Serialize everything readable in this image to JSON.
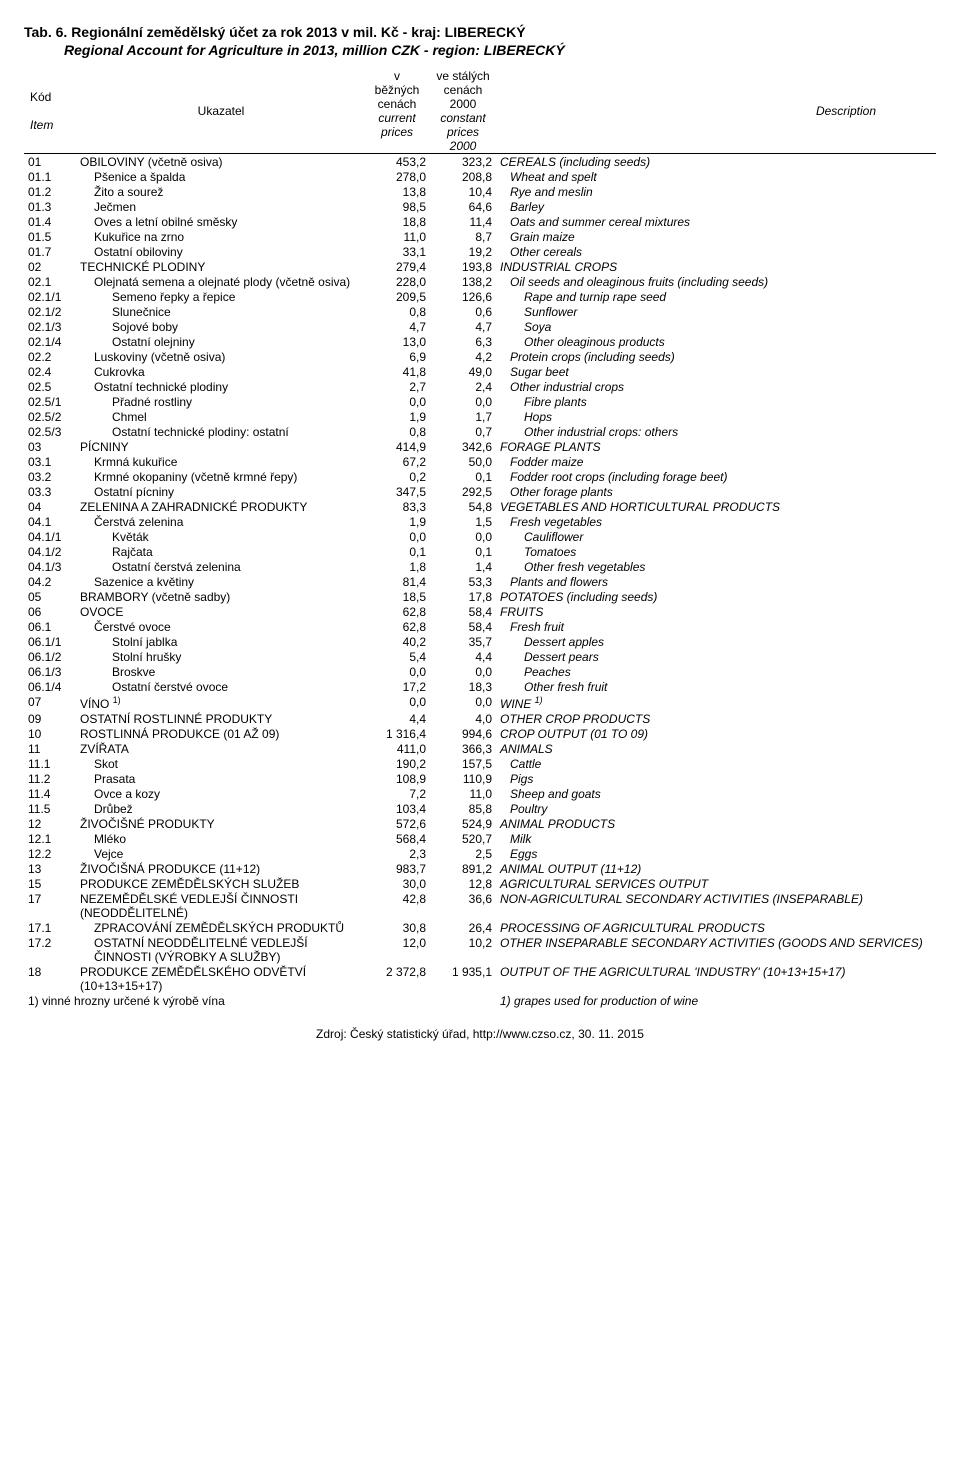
{
  "title_cz": "Tab. 6. Regionální zemědělský účet za rok 2013 v mil. Kč - kraj: LIBERECKÝ",
  "title_en": "Regional Account for Agriculture  in 2013, million CZK - region: LIBERECKÝ",
  "header": {
    "kod": "Kód",
    "item": "Item",
    "ukazatel": "Ukazatel",
    "col1_cz_l1": "v",
    "col1_cz_l2": "běžných",
    "col1_cz_l3": "cenách",
    "col1_en_l1": "current",
    "col1_en_l2": "prices",
    "col2_cz_l1": "ve stálých",
    "col2_cz_l2": "cenách",
    "col2_cz_l3": "2000",
    "col2_en_l1": "constant",
    "col2_en_l2": "prices",
    "col2_en_l3": "2000",
    "description": "Description"
  },
  "rows": [
    {
      "code": "01",
      "ukz": "OBILOVINY (včetně osiva)",
      "v1": "453,2",
      "v2": "323,2",
      "desc": "CEREALS (including seeds)",
      "ui": 0,
      "di": 0
    },
    {
      "code": "01.1",
      "ukz": "Pšenice a špalda",
      "v1": "278,0",
      "v2": "208,8",
      "desc": "Wheat and spelt",
      "ui": 1,
      "di": 1
    },
    {
      "code": "01.2",
      "ukz": "Žito a sourež",
      "v1": "13,8",
      "v2": "10,4",
      "desc": "Rye and meslin",
      "ui": 1,
      "di": 1
    },
    {
      "code": "01.3",
      "ukz": "Ječmen",
      "v1": "98,5",
      "v2": "64,6",
      "desc": "Barley",
      "ui": 1,
      "di": 1
    },
    {
      "code": "01.4",
      "ukz": "Oves a letní obilné směsky",
      "v1": "18,8",
      "v2": "11,4",
      "desc": "Oats and summer cereal mixtures",
      "ui": 1,
      "di": 1
    },
    {
      "code": "01.5",
      "ukz": "Kukuřice na zrno",
      "v1": "11,0",
      "v2": "8,7",
      "desc": "Grain maize",
      "ui": 1,
      "di": 1
    },
    {
      "code": "01.7",
      "ukz": "Ostatní obiloviny",
      "v1": "33,1",
      "v2": "19,2",
      "desc": "Other cereals",
      "ui": 1,
      "di": 1
    },
    {
      "code": "02",
      "ukz": "TECHNICKÉ PLODINY",
      "v1": "279,4",
      "v2": "193,8",
      "desc": "INDUSTRIAL CROPS",
      "ui": 0,
      "di": 0
    },
    {
      "code": "02.1",
      "ukz": "Olejnatá semena a olejnaté plody (včetně osiva)",
      "v1": "228,0",
      "v2": "138,2",
      "desc": "Oil seeds and oleaginous fruits (including seeds)",
      "ui": 1,
      "di": 1
    },
    {
      "code": "02.1/1",
      "ukz": "Semeno řepky a řepice",
      "v1": "209,5",
      "v2": "126,6",
      "desc": "Rape and turnip rape seed",
      "ui": 2,
      "di": 2
    },
    {
      "code": "02.1/2",
      "ukz": "Slunečnice",
      "v1": "0,8",
      "v2": "0,6",
      "desc": "Sunflower",
      "ui": 2,
      "di": 2
    },
    {
      "code": "02.1/3",
      "ukz": "Sojové boby",
      "v1": "4,7",
      "v2": "4,7",
      "desc": "Soya",
      "ui": 2,
      "di": 2
    },
    {
      "code": "02.1/4",
      "ukz": "Ostatní olejniny",
      "v1": "13,0",
      "v2": "6,3",
      "desc": "Other oleaginous products",
      "ui": 2,
      "di": 2
    },
    {
      "code": "02.2",
      "ukz": "Luskoviny (včetně osiva)",
      "v1": "6,9",
      "v2": "4,2",
      "desc": "Protein crops (including seeds)",
      "ui": 1,
      "di": 1
    },
    {
      "code": "02.4",
      "ukz": "Cukrovka",
      "v1": "41,8",
      "v2": "49,0",
      "desc": "Sugar beet",
      "ui": 1,
      "di": 1
    },
    {
      "code": "02.5",
      "ukz": "Ostatní technické plodiny",
      "v1": "2,7",
      "v2": "2,4",
      "desc": "Other industrial crops",
      "ui": 1,
      "di": 1
    },
    {
      "code": "02.5/1",
      "ukz": "Přadné rostliny",
      "v1": "0,0",
      "v2": "0,0",
      "desc": "Fibre plants",
      "ui": 2,
      "di": 2
    },
    {
      "code": "02.5/2",
      "ukz": "Chmel",
      "v1": "1,9",
      "v2": "1,7",
      "desc": "Hops",
      "ui": 2,
      "di": 2
    },
    {
      "code": "02.5/3",
      "ukz": "Ostatní technické plodiny: ostatní",
      "v1": "0,8",
      "v2": "0,7",
      "desc": "Other industrial crops: others",
      "ui": 2,
      "di": 2
    },
    {
      "code": "03",
      "ukz": "PÍCNINY",
      "v1": "414,9",
      "v2": "342,6",
      "desc": "FORAGE PLANTS",
      "ui": 0,
      "di": 0
    },
    {
      "code": "03.1",
      "ukz": "Krmná kukuřice",
      "v1": "67,2",
      "v2": "50,0",
      "desc": "Fodder maize",
      "ui": 1,
      "di": 1
    },
    {
      "code": "03.2",
      "ukz": "Krmné okopaniny (včetně krmné řepy)",
      "v1": "0,2",
      "v2": "0,1",
      "desc": "Fodder root crops (including forage beet)",
      "ui": 1,
      "di": 1
    },
    {
      "code": "03.3",
      "ukz": "Ostatní pícniny",
      "v1": "347,5",
      "v2": "292,5",
      "desc": "Other forage plants",
      "ui": 1,
      "di": 1
    },
    {
      "code": "04",
      "ukz": "ZELENINA A ZAHRADNICKÉ PRODUKTY",
      "v1": "83,3",
      "v2": "54,8",
      "desc": "VEGETABLES AND HORTICULTURAL PRODUCTS",
      "ui": 0,
      "di": 0
    },
    {
      "code": "04.1",
      "ukz": "Čerstvá zelenina",
      "v1": "1,9",
      "v2": "1,5",
      "desc": "Fresh vegetables",
      "ui": 1,
      "di": 1
    },
    {
      "code": "04.1/1",
      "ukz": "Květák",
      "v1": "0,0",
      "v2": "0,0",
      "desc": "Cauliflower",
      "ui": 2,
      "di": 2
    },
    {
      "code": "04.1/2",
      "ukz": "Rajčata",
      "v1": "0,1",
      "v2": "0,1",
      "desc": "Tomatoes",
      "ui": 2,
      "di": 2
    },
    {
      "code": "04.1/3",
      "ukz": "Ostatní čerstvá zelenina",
      "v1": "1,8",
      "v2": "1,4",
      "desc": "Other fresh vegetables",
      "ui": 2,
      "di": 2
    },
    {
      "code": "04.2",
      "ukz": "Sazenice a květiny",
      "v1": "81,4",
      "v2": "53,3",
      "desc": "Plants and flowers",
      "ui": 1,
      "di": 1
    },
    {
      "code": "05",
      "ukz": "BRAMBORY (včetně sadby)",
      "v1": "18,5",
      "v2": "17,8",
      "desc": "POTATOES (including seeds)",
      "ui": 0,
      "di": 0
    },
    {
      "code": "06",
      "ukz": "OVOCE",
      "v1": "62,8",
      "v2": "58,4",
      "desc": "FRUITS",
      "ui": 0,
      "di": 0
    },
    {
      "code": "06.1",
      "ukz": "Čerstvé ovoce",
      "v1": "62,8",
      "v2": "58,4",
      "desc": "Fresh fruit",
      "ui": 1,
      "di": 1
    },
    {
      "code": "06.1/1",
      "ukz": "Stolní jablka",
      "v1": "40,2",
      "v2": "35,7",
      "desc": "Dessert apples",
      "ui": 2,
      "di": 2
    },
    {
      "code": "06.1/2",
      "ukz": "Stolní hrušky",
      "v1": "5,4",
      "v2": "4,4",
      "desc": "Dessert pears",
      "ui": 2,
      "di": 2
    },
    {
      "code": "06.1/3",
      "ukz": "Broskve",
      "v1": "0,0",
      "v2": "0,0",
      "desc": "Peaches",
      "ui": 2,
      "di": 2
    },
    {
      "code": "06.1/4",
      "ukz": "Ostatní čerstvé ovoce",
      "v1": "17,2",
      "v2": "18,3",
      "desc": "Other fresh fruit",
      "ui": 2,
      "di": 2
    },
    {
      "code": "07",
      "ukz": "VÍNO",
      "v1": "0,0",
      "v2": "0,0",
      "desc": "WINE",
      "ui": 0,
      "di": 0,
      "sup": "1)"
    },
    {
      "code": "09",
      "ukz": "OSTATNÍ ROSTLINNÉ PRODUKTY",
      "v1": "4,4",
      "v2": "4,0",
      "desc": "OTHER CROP PRODUCTS",
      "ui": 0,
      "di": 0
    },
    {
      "code": "10",
      "ukz": "ROSTLINNÁ PRODUKCE (01 AŽ 09)",
      "v1": "1 316,4",
      "v2": "994,6",
      "desc": "CROP OUTPUT (01 TO 09)",
      "ui": 0,
      "di": 0
    },
    {
      "code": "11",
      "ukz": "ZVÍŘATA",
      "v1": "411,0",
      "v2": "366,3",
      "desc": "ANIMALS",
      "ui": 0,
      "di": 0
    },
    {
      "code": "11.1",
      "ukz": "Skot",
      "v1": "190,2",
      "v2": "157,5",
      "desc": "Cattle",
      "ui": 1,
      "di": 1
    },
    {
      "code": "11.2",
      "ukz": "Prasata",
      "v1": "108,9",
      "v2": "110,9",
      "desc": "Pigs",
      "ui": 1,
      "di": 1
    },
    {
      "code": "11.4",
      "ukz": "Ovce a kozy",
      "v1": "7,2",
      "v2": "11,0",
      "desc": "Sheep and goats",
      "ui": 1,
      "di": 1
    },
    {
      "code": "11.5",
      "ukz": "Drůbež",
      "v1": "103,4",
      "v2": "85,8",
      "desc": "Poultry",
      "ui": 1,
      "di": 1
    },
    {
      "code": "12",
      "ukz": "ŽIVOČIŠNÉ PRODUKTY",
      "v1": "572,6",
      "v2": "524,9",
      "desc": "ANIMAL PRODUCTS",
      "ui": 0,
      "di": 0
    },
    {
      "code": "12.1",
      "ukz": "Mléko",
      "v1": "568,4",
      "v2": "520,7",
      "desc": "Milk",
      "ui": 1,
      "di": 1
    },
    {
      "code": "12.2",
      "ukz": "Vejce",
      "v1": "2,3",
      "v2": "2,5",
      "desc": "Eggs",
      "ui": 1,
      "di": 1
    },
    {
      "code": "13",
      "ukz": "ŽIVOČIŠNÁ PRODUKCE (11+12)",
      "v1": "983,7",
      "v2": "891,2",
      "desc": "ANIMAL OUTPUT (11+12)",
      "ui": 0,
      "di": 0
    },
    {
      "code": "15",
      "ukz": "PRODUKCE ZEMĚDĚLSKÝCH SLUŽEB",
      "v1": "30,0",
      "v2": "12,8",
      "desc": "AGRICULTURAL SERVICES OUTPUT",
      "ui": 0,
      "di": 0
    },
    {
      "code": "17",
      "ukz": "NEZEMĚDĚLSKÉ VEDLEJŠÍ ČINNOSTI (NEODDĚLITELNÉ)",
      "v1": "42,8",
      "v2": "36,6",
      "desc": "NON-AGRICULTURAL SECONDARY ACTIVITIES (INSEPARABLE)",
      "ui": 0,
      "di": 0
    },
    {
      "code": "17.1",
      "ukz": "ZPRACOVÁNÍ ZEMĚDĚLSKÝCH PRODUKTŮ",
      "v1": "30,8",
      "v2": "26,4",
      "desc": "PROCESSING OF AGRICULTURAL PRODUCTS",
      "ui": 1,
      "di": 0
    },
    {
      "code": "17.2",
      "ukz": "OSTATNÍ NEODDĚLITELNÉ VEDLEJŠÍ ČINNOSTI (VÝROBKY A SLUŽBY)",
      "v1": "12,0",
      "v2": "10,2",
      "desc": "OTHER INSEPARABLE SECONDARY ACTIVITIES (GOODS AND SERVICES)",
      "ui": 1,
      "di": 0
    },
    {
      "code": "18",
      "ukz": "PRODUKCE ZEMĚDĚLSKÉHO ODVĚTVÍ (10+13+15+17)",
      "v1": "2 372,8",
      "v2": "1 935,1",
      "desc": "OUTPUT OF THE AGRICULTURAL 'INDUSTRY' (10+13+15+17)",
      "ui": 0,
      "di": 0
    }
  ],
  "footnote_cz": "1) vinné hrozny určené k výrobě vína",
  "footnote_en": "1) grapes used for production of wine",
  "footer": "Zdroj: Český statistický úřad, http://www.czso.cz, 30. 11. 2015",
  "colwidths": {
    "code": "52px",
    "ukz": "288px",
    "v1": "66px",
    "v2": "66px",
    "desc": "auto"
  }
}
